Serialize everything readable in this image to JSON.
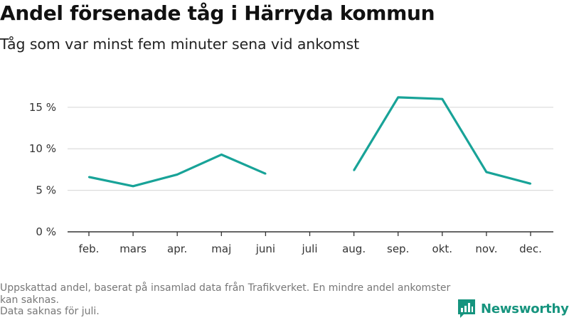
{
  "header": {
    "title": "Andel försenade tåg i Härryda kommun",
    "subtitle": "Tåg som var minst fem minuter sena vid ankomst"
  },
  "chart_data": {
    "type": "line",
    "categories": [
      "feb.",
      "mars",
      "apr.",
      "maj",
      "juni",
      "juli",
      "aug.",
      "sep.",
      "okt.",
      "nov.",
      "dec."
    ],
    "values": [
      6.6,
      5.5,
      6.9,
      9.3,
      7.0,
      null,
      7.4,
      16.2,
      16.0,
      7.2,
      5.8
    ],
    "y_ticks": [
      0,
      5,
      10,
      15
    ],
    "y_tick_labels": [
      "0 %",
      "5 %",
      "10 %",
      "15 %"
    ],
    "ylim": [
      0,
      18.5
    ],
    "grid": "horizontal",
    "line_color": "#18a398",
    "title": "Andel försenade tåg i Härryda kommun",
    "xlabel": "",
    "ylabel": ""
  },
  "footer": {
    "note_line1": "Uppskattad andel, baserat på insamlad data från Trafikverket. En mindre andel ankomster kan saknas.",
    "note_line2": "Data saknas för juli.",
    "brand": "Newsworthy",
    "brand_color": "#16947e"
  }
}
